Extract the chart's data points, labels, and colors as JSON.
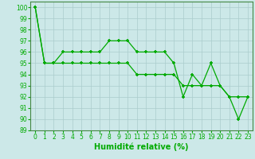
{
  "xlabel": "Humidité relative (%)",
  "xlim": [
    -0.5,
    23.5
  ],
  "ylim": [
    89,
    100.5
  ],
  "yticks": [
    89,
    90,
    91,
    92,
    93,
    94,
    95,
    96,
    97,
    98,
    99,
    100
  ],
  "xticks": [
    0,
    1,
    2,
    3,
    4,
    5,
    6,
    7,
    8,
    9,
    10,
    11,
    12,
    13,
    14,
    15,
    16,
    17,
    18,
    19,
    20,
    21,
    22,
    23
  ],
  "line1_x": [
    0,
    1,
    2,
    3,
    4,
    5,
    6,
    7,
    8,
    9,
    10,
    11,
    12,
    13,
    14,
    15,
    16,
    17,
    18,
    19,
    20,
    21,
    22,
    23
  ],
  "line1_y": [
    100,
    95,
    95,
    96,
    96,
    96,
    96,
    96,
    97,
    97,
    97,
    96,
    96,
    96,
    96,
    95,
    92,
    94,
    93,
    95,
    93,
    92,
    90,
    92
  ],
  "line2_x": [
    0,
    1,
    2,
    3,
    4,
    5,
    6,
    7,
    8,
    9,
    10,
    11,
    12,
    13,
    14,
    15,
    16,
    17,
    18,
    19,
    20,
    21,
    22,
    23
  ],
  "line2_y": [
    100,
    95,
    95,
    95,
    95,
    95,
    95,
    95,
    95,
    95,
    95,
    94,
    94,
    94,
    94,
    94,
    93,
    93,
    93,
    93,
    93,
    92,
    92,
    92
  ],
  "line_color": "#00aa00",
  "marker": "+",
  "marker_size": 3.5,
  "marker_edge_width": 1.2,
  "bg_color": "#cce8e8",
  "grid_color": "#aacccc",
  "line_width": 0.9,
  "tick_fontsize": 5.5,
  "xlabel_fontsize": 7,
  "xlabel_fontweight": "bold",
  "spine_color": "#448844"
}
